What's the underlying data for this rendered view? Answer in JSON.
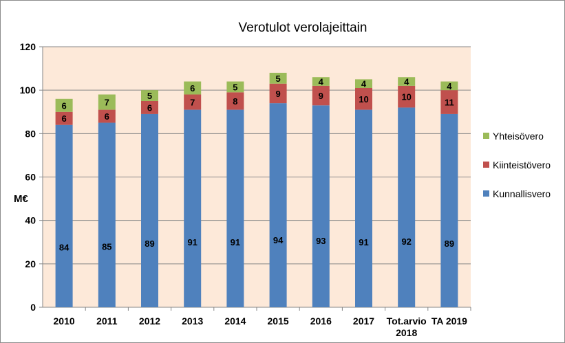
{
  "chart_data": {
    "type": "bar",
    "stacked": true,
    "title": "Verotulot verolajeittain",
    "ylabel": "M€",
    "ylim": [
      0,
      120
    ],
    "yticks": [
      0,
      20,
      40,
      60,
      80,
      100,
      120
    ],
    "grid": true,
    "legend_position": "right",
    "categories": [
      "2010",
      "2011",
      "2012",
      "2013",
      "2014",
      "2015",
      "2016",
      "2017",
      "Tot.arvio 2018",
      "TA 2019"
    ],
    "category_lines": [
      [
        "2010"
      ],
      [
        "2011"
      ],
      [
        "2012"
      ],
      [
        "2013"
      ],
      [
        "2014"
      ],
      [
        "2015"
      ],
      [
        "2016"
      ],
      [
        "2017"
      ],
      [
        "Tot.arvio",
        "2018"
      ],
      [
        "TA 2019"
      ]
    ],
    "series": [
      {
        "name": "Kunnallisvero",
        "color": "#4f81bd",
        "values": [
          84,
          85,
          89,
          91,
          91,
          94,
          93,
          91,
          92,
          89
        ]
      },
      {
        "name": "Kiinteistövero",
        "color": "#c0504d",
        "values": [
          6,
          6,
          6,
          7,
          8,
          9,
          9,
          10,
          10,
          11
        ]
      },
      {
        "name": "Yhteisövero",
        "color": "#9bbb59",
        "values": [
          6,
          7,
          5,
          6,
          5,
          5,
          4,
          4,
          4,
          4
        ]
      }
    ],
    "legend_order": [
      "Yhteisövero",
      "Kiinteistövero",
      "Kunnallisvero"
    ],
    "plot_background": "#fde9d9"
  }
}
